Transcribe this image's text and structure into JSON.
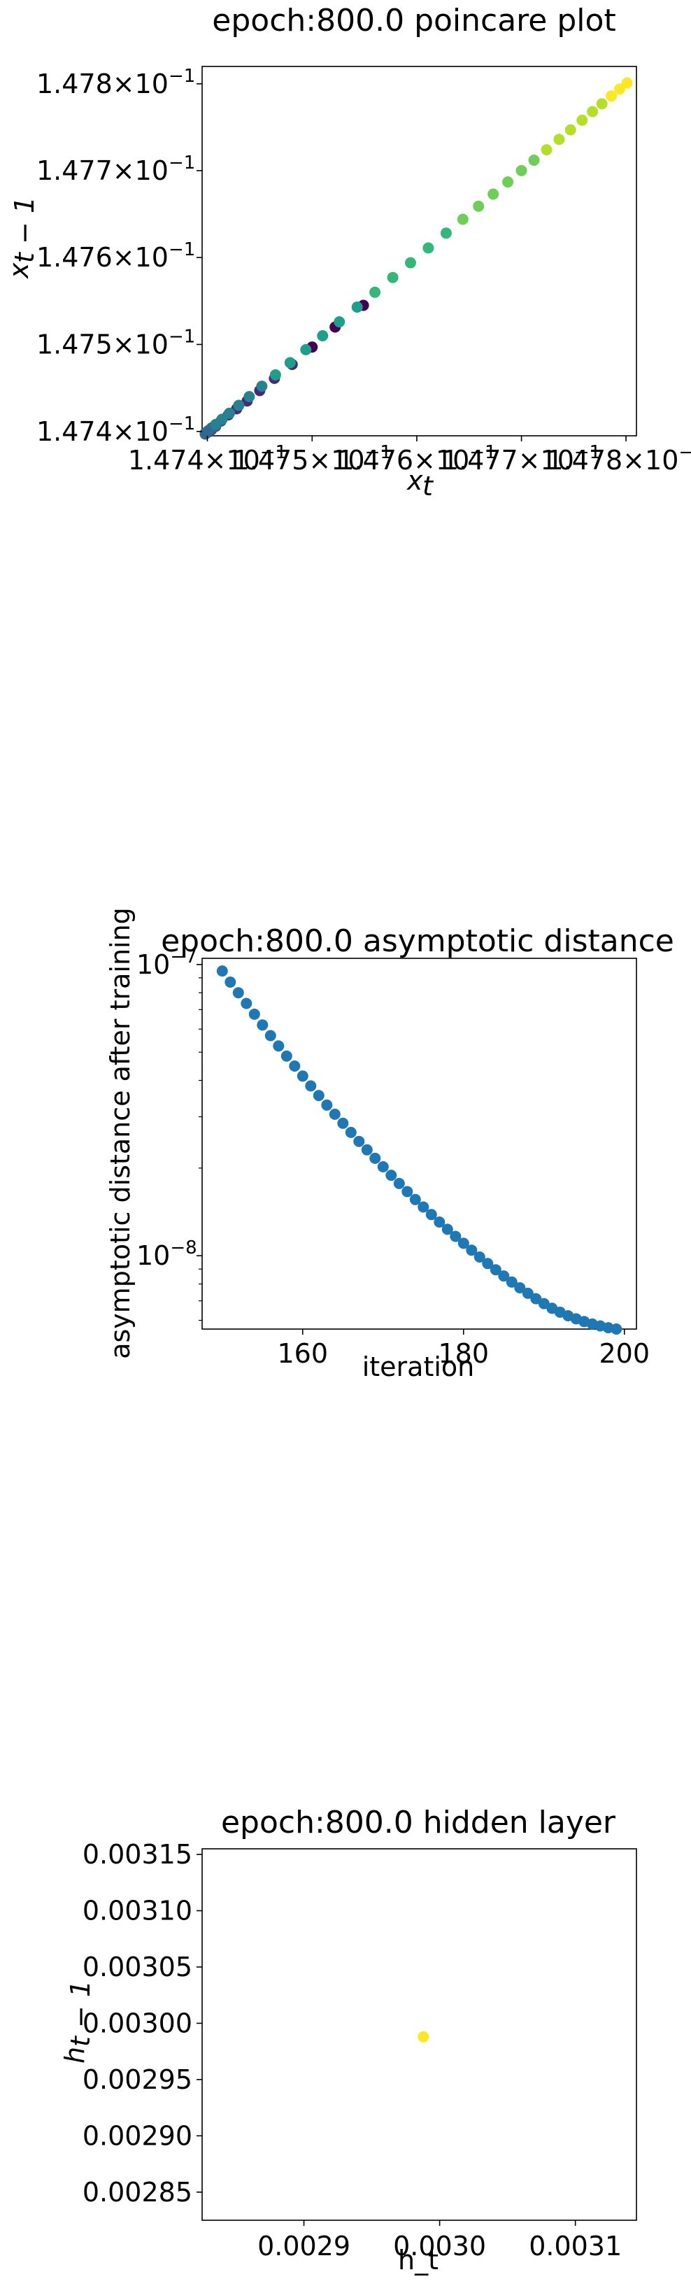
{
  "colors": {
    "viridis": [
      "#440154",
      "#482878",
      "#3e4989",
      "#31688e",
      "#26828e",
      "#1f9e89",
      "#35b779",
      "#6ece58",
      "#b5de2b",
      "#fde725"
    ],
    "series_blue": "#1f77b4",
    "hidden_point": "#fde725"
  },
  "chart_data": [
    {
      "type": "scatter",
      "title": "epoch:800.0 poincare plot",
      "xlabel": "x_t",
      "ylabel": "x_{t-1}",
      "scale": "log",
      "colormap": "viridis",
      "xlim": [
        0.147395,
        0.14781
      ],
      "ylim": [
        0.147395,
        0.14782
      ],
      "xticks": [
        {
          "value": 0.1474,
          "mant": "1.474",
          "times": "×10",
          "exp": "−1"
        },
        {
          "value": 0.1475,
          "mant": "1.475",
          "times": "×10",
          "exp": "−1"
        },
        {
          "value": 0.1476,
          "mant": "1.476",
          "times": "×10",
          "exp": "−1"
        },
        {
          "value": 0.1477,
          "mant": "1.477",
          "times": "×10",
          "exp": "−1"
        },
        {
          "value": 0.1478,
          "mant": "1.478",
          "times": "×10",
          "exp": "−1"
        }
      ],
      "yticks": [
        {
          "value": 0.1474,
          "mant": "1.474",
          "times": "×10",
          "exp": "−1"
        },
        {
          "value": 0.1475,
          "mant": "1.475",
          "times": "×10",
          "exp": "−1"
        },
        {
          "value": 0.1476,
          "mant": "1.476",
          "times": "×10",
          "exp": "−1"
        },
        {
          "value": 0.1477,
          "mant": "1.477",
          "times": "×10",
          "exp": "−1"
        },
        {
          "value": 0.1478,
          "mant": "1.478",
          "times": "×10",
          "exp": "−1"
        }
      ],
      "points": [
        [
          0.147549,
          0.147545
        ],
        [
          0.147522,
          0.14752
        ],
        [
          0.1475,
          0.147497
        ],
        [
          0.147481,
          0.147477
        ],
        [
          0.147464,
          0.147461
        ],
        [
          0.14745,
          0.147447
        ],
        [
          0.147438,
          0.147435
        ],
        [
          0.147428,
          0.147426
        ],
        [
          0.14742,
          0.147419
        ],
        [
          0.147413,
          0.147412
        ],
        [
          0.147408,
          0.147406
        ],
        [
          0.147404,
          0.147402
        ],
        [
          0.147402,
          0.1474
        ],
        [
          0.1474,
          0.147399
        ],
        [
          0.147399,
          0.147398
        ],
        [
          0.147398,
          0.147397
        ],
        [
          0.147398,
          0.147398
        ],
        [
          0.147399,
          0.147399
        ],
        [
          0.147401,
          0.147401
        ],
        [
          0.147404,
          0.147404
        ],
        [
          0.147408,
          0.147408
        ],
        [
          0.147414,
          0.147414
        ],
        [
          0.147421,
          0.147421
        ],
        [
          0.14743,
          0.14743
        ],
        [
          0.14744,
          0.14744
        ],
        [
          0.147452,
          0.147452
        ],
        [
          0.147465,
          0.147465
        ],
        [
          0.147479,
          0.147479
        ],
        [
          0.147494,
          0.147494
        ],
        [
          0.14751,
          0.14751
        ],
        [
          0.147526,
          0.147526
        ],
        [
          0.147543,
          0.147543
        ],
        [
          0.14756,
          0.14756
        ],
        [
          0.147577,
          0.147577
        ],
        [
          0.147594,
          0.147594
        ],
        [
          0.147611,
          0.147611
        ],
        [
          0.147628,
          0.147628
        ],
        [
          0.147644,
          0.147644
        ],
        [
          0.147659,
          0.147659
        ],
        [
          0.147673,
          0.147673
        ],
        [
          0.147687,
          0.147687
        ],
        [
          0.1477,
          0.1477
        ],
        [
          0.147712,
          0.147712
        ],
        [
          0.147724,
          0.147724
        ],
        [
          0.147736,
          0.147736
        ],
        [
          0.147747,
          0.147747
        ],
        [
          0.147758,
          0.147758
        ],
        [
          0.147768,
          0.147768
        ],
        [
          0.147777,
          0.147777
        ],
        [
          0.147786,
          0.147786
        ],
        [
          0.147794,
          0.147794
        ],
        [
          0.147801,
          0.147801
        ]
      ]
    },
    {
      "type": "scatter",
      "title": "epoch:800.0 asymptotic distance",
      "xlabel": "iteration",
      "ylabel": "asymptotic distance after training",
      "yscale": "log",
      "xlim": [
        147.5,
        201.5
      ],
      "ylim": [
        5.6e-09,
        1.05e-07
      ],
      "xticks": [
        {
          "value": 160,
          "label": "160"
        },
        {
          "value": 180,
          "label": "180"
        },
        {
          "value": 200,
          "label": "200"
        }
      ],
      "yticks": [
        {
          "value": 1e-07,
          "base": "10",
          "exp": "−7"
        },
        {
          "value": 1e-08,
          "base": "10",
          "exp": "−8"
        }
      ],
      "minor_yticks": [
        6e-09,
        7e-09,
        8e-09,
        9e-09,
        2e-08,
        3e-08,
        4e-08,
        5e-08,
        6e-08,
        7e-08,
        8e-08,
        9e-08
      ],
      "x": [
        150,
        151,
        152,
        153,
        154,
        155,
        156,
        157,
        158,
        159,
        160,
        161,
        162,
        163,
        164,
        165,
        166,
        167,
        168,
        169,
        170,
        171,
        172,
        173,
        174,
        175,
        176,
        177,
        178,
        179,
        180,
        181,
        182,
        183,
        184,
        185,
        186,
        187,
        188,
        189,
        190,
        191,
        192,
        193,
        194,
        195,
        196,
        197,
        198,
        199
      ],
      "y": [
        9.5e-08,
        8.7e-08,
        8e-08,
        7.35e-08,
        6.75e-08,
        6.2e-08,
        5.7e-08,
        5.25e-08,
        4.85e-08,
        4.48e-08,
        4.14e-08,
        3.83e-08,
        3.55e-08,
        3.29e-08,
        3.06e-08,
        2.85e-08,
        2.65e-08,
        2.47e-08,
        2.31e-08,
        2.16e-08,
        2.02e-08,
        1.89e-08,
        1.77e-08,
        1.66e-08,
        1.56e-08,
        1.47e-08,
        1.385e-08,
        1.305e-08,
        1.232e-08,
        1.165e-08,
        1.103e-08,
        1.045e-08,
        9.9e-09,
        9.4e-09,
        8.95e-09,
        8.52e-09,
        8.12e-09,
        7.76e-09,
        7.43e-09,
        7.12e-09,
        6.85e-09,
        6.6e-09,
        6.4e-09,
        6.22e-09,
        6.07e-09,
        5.94e-09,
        5.83e-09,
        5.74e-09,
        5.66e-09,
        5.6e-09
      ]
    },
    {
      "type": "scatter",
      "title": "epoch:800.0 hidden layer",
      "xlabel": "h_t",
      "ylabel": "h_{t-1}",
      "xlim": [
        0.002825,
        0.003145
      ],
      "ylim": [
        0.002825,
        0.003155
      ],
      "xticks": [
        {
          "value": 0.0029,
          "label": "0.0029"
        },
        {
          "value": 0.003,
          "label": "0.0030"
        },
        {
          "value": 0.0031,
          "label": "0.0031"
        }
      ],
      "yticks": [
        {
          "value": 0.00285,
          "label": "0.00285"
        },
        {
          "value": 0.0029,
          "label": "0.00290"
        },
        {
          "value": 0.00295,
          "label": "0.00295"
        },
        {
          "value": 0.003,
          "label": "0.00300"
        },
        {
          "value": 0.00305,
          "label": "0.00305"
        },
        {
          "value": 0.0031,
          "label": "0.00310"
        },
        {
          "value": 0.00315,
          "label": "0.00315"
        }
      ],
      "points": [
        [
          0.002988,
          0.002988
        ]
      ]
    }
  ]
}
